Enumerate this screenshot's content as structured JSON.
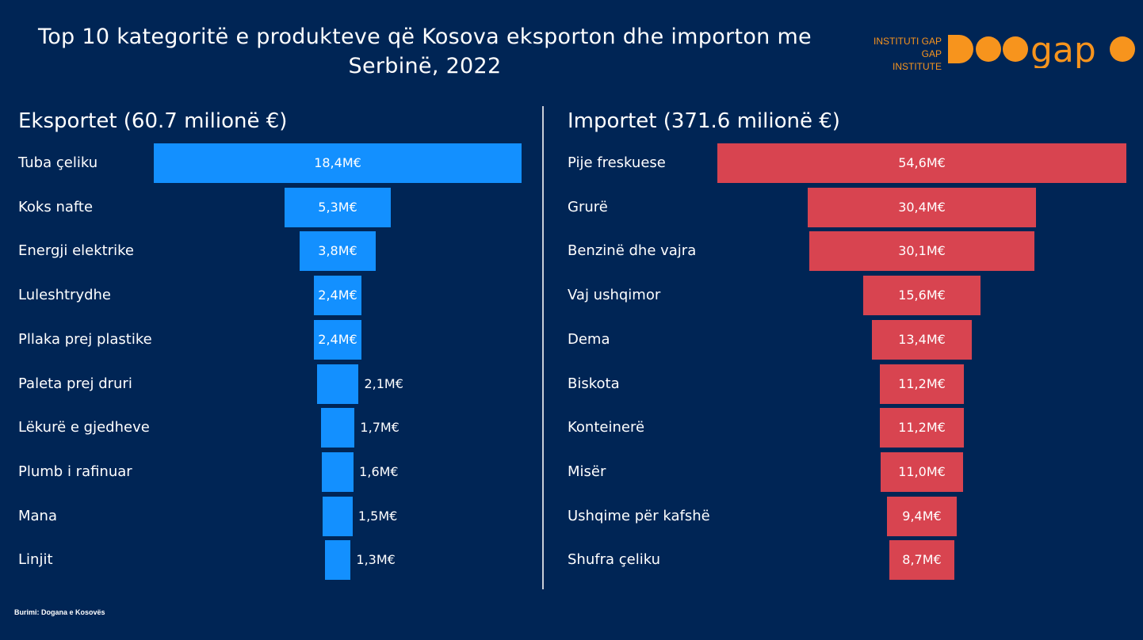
{
  "header": {
    "title_line1": "Top 10 kategoritë e produkteve që Kosova eksporton dhe importon me",
    "title_line2": "Serbinë, 2022"
  },
  "logo": {
    "line1": "INSTITUTI GAP",
    "line2": "GAP INSTITUTE",
    "wordmark": "gap",
    "color": "#f7941d"
  },
  "source": "Burimi: Dogana e Kosovës",
  "chart_data": [
    {
      "type": "bar",
      "orientation": "horizontal-centered",
      "title": "Eksportet (60.7 milionë €)",
      "color": "#1390ff",
      "categories": [
        "Tuba çeliku",
        "Koks nafte",
        "Energji elektrike",
        "Luleshtrydhe",
        "Pllaka prej plastike",
        "Paleta prej druri",
        "Lëkurë e gjedheve",
        "Plumb i rafinuar",
        "Mana",
        "Linjit"
      ],
      "values": [
        18.4,
        5.3,
        3.8,
        2.4,
        2.4,
        2.1,
        1.7,
        1.6,
        1.5,
        1.3
      ],
      "labels": [
        "18,4M€",
        "5,3M€",
        "3,8M€",
        "2,4M€",
        "2,4M€",
        "2,1M€",
        "1,7M€",
        "1,6M€",
        "1,5M€",
        "1,3M€"
      ]
    },
    {
      "type": "bar",
      "orientation": "horizontal-centered",
      "title": "Importet (371.6 milionë €)",
      "color": "#d84450",
      "categories": [
        "Pije freskuese",
        "Grurë",
        "Benzinë dhe vajra",
        "Vaj ushqimor",
        "Dema",
        "Biskota",
        "Konteinerë",
        "Misër",
        "Ushqime për kafshë",
        "Shufra çeliku"
      ],
      "values": [
        54.6,
        30.4,
        30.1,
        15.6,
        13.4,
        11.2,
        11.2,
        11.0,
        9.4,
        8.7
      ],
      "labels": [
        "54,6M€",
        "30,4M€",
        "30,1M€",
        "15,6M€",
        "13,4M€",
        "11,2M€",
        "11,2M€",
        "11,0M€",
        "9,4M€",
        "8,7M€"
      ]
    }
  ]
}
